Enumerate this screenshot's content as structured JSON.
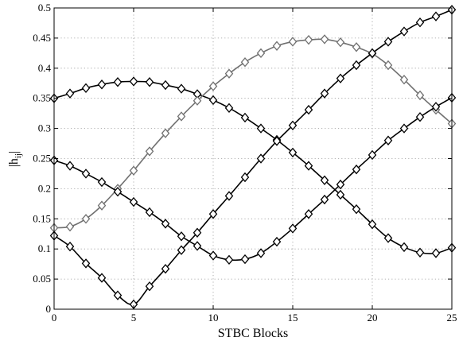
{
  "chart_data": {
    "type": "line",
    "title": "",
    "xlabel": "STBC Blocks",
    "ylabel": "|h_ij|",
    "xlim": [
      0,
      25
    ],
    "ylim": [
      0,
      0.5
    ],
    "grid": true,
    "legend": "none",
    "x_ticks": [
      "0",
      "5",
      "10",
      "15",
      "20",
      "25"
    ],
    "y_ticks": [
      "0",
      "0.05",
      "0.1",
      "0.15",
      "0.2",
      "0.25",
      "0.3",
      "0.35",
      "0.4",
      "0.45",
      "0.5"
    ],
    "marker": "diamond",
    "colors": {
      "black": "#000000",
      "gray": "#707070"
    },
    "series": [
      {
        "color": "#000000",
        "x": [
          0,
          1,
          2,
          3,
          4,
          5,
          6,
          7,
          8,
          9,
          10,
          11,
          12,
          13,
          14,
          15,
          16,
          17,
          18,
          19,
          20,
          21,
          22,
          23,
          24,
          25
        ],
        "y": [
          0.35,
          0.358,
          0.367,
          0.373,
          0.377,
          0.378,
          0.377,
          0.372,
          0.366,
          0.357,
          0.347,
          0.334,
          0.318,
          0.3,
          0.281,
          0.26,
          0.238,
          0.214,
          0.19,
          0.166,
          0.141,
          0.118,
          0.103,
          0.094,
          0.093,
          0.102
        ]
      },
      {
        "color": "#707070",
        "x": [
          0,
          1,
          2,
          3,
          4,
          5,
          6,
          7,
          8,
          9,
          10,
          11,
          12,
          13,
          14,
          15,
          16,
          17,
          18,
          19,
          20,
          21,
          22,
          23,
          24,
          25
        ],
        "y": [
          0.135,
          0.137,
          0.15,
          0.172,
          0.2,
          0.23,
          0.262,
          0.292,
          0.32,
          0.346,
          0.37,
          0.391,
          0.41,
          0.425,
          0.437,
          0.444,
          0.447,
          0.448,
          0.443,
          0.435,
          0.424,
          0.405,
          0.381,
          0.355,
          0.331,
          0.308
        ]
      },
      {
        "color": "#000000",
        "x": [
          0,
          1,
          2,
          3,
          4,
          5,
          6,
          7,
          8,
          9,
          10,
          11,
          12,
          13,
          14,
          15,
          16,
          17,
          18,
          19,
          20,
          21,
          22,
          23,
          24,
          25
        ],
        "y": [
          0.247,
          0.238,
          0.225,
          0.211,
          0.195,
          0.178,
          0.161,
          0.142,
          0.121,
          0.105,
          0.089,
          0.082,
          0.083,
          0.093,
          0.112,
          0.134,
          0.158,
          0.182,
          0.207,
          0.232,
          0.256,
          0.28,
          0.3,
          0.319,
          0.336,
          0.351
        ]
      },
      {
        "color": "#000000",
        "x": [
          0,
          1,
          2,
          3,
          4,
          5,
          6,
          7,
          8,
          9,
          10,
          11,
          12,
          13,
          14,
          15,
          16,
          17,
          18,
          19,
          20,
          21,
          22,
          23,
          24,
          25
        ],
        "y": [
          0.122,
          0.104,
          0.076,
          0.052,
          0.023,
          0.008,
          0.038,
          0.067,
          0.098,
          0.127,
          0.158,
          0.188,
          0.219,
          0.25,
          0.279,
          0.305,
          0.331,
          0.358,
          0.383,
          0.405,
          0.425,
          0.444,
          0.461,
          0.476,
          0.486,
          0.497
        ]
      }
    ]
  }
}
